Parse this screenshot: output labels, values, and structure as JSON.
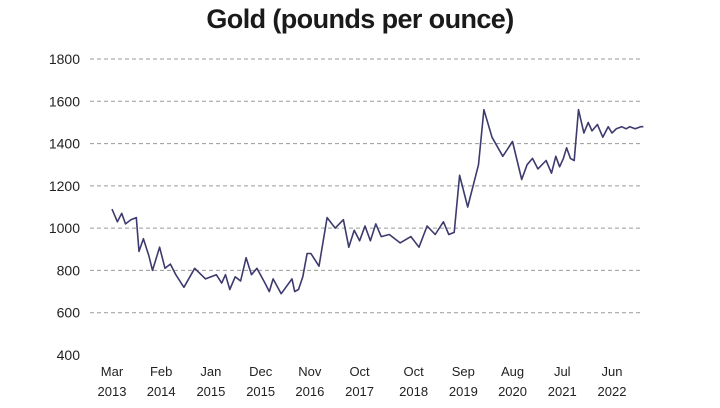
{
  "chart_data": {
    "type": "line",
    "title": "Gold (pounds per ounce)",
    "xlabel": "",
    "ylabel": "",
    "ylim": [
      400,
      1800
    ],
    "yticks": [
      400,
      600,
      800,
      1000,
      1200,
      1400,
      1600,
      1800
    ],
    "grid": "horizontal dashed",
    "x_tick_labels": [
      {
        "month": "Mar",
        "year": "2013",
        "x": 2013.17
      },
      {
        "month": "Feb",
        "year": "2014",
        "x": 2014.08
      },
      {
        "month": "Jan",
        "year": "2015",
        "x": 2015.0
      },
      {
        "month": "Dec",
        "year": "2015",
        "x": 2015.92
      },
      {
        "month": "Nov",
        "year": "2016",
        "x": 2016.83
      },
      {
        "month": "Oct",
        "year": "2017",
        "x": 2017.75
      },
      {
        "month": "Oct",
        "year": "2018",
        "x": 2018.75
      },
      {
        "month": "Sep",
        "year": "2019",
        "x": 2019.67
      },
      {
        "month": "Aug",
        "year": "2020",
        "x": 2020.58
      },
      {
        "month": "Jul",
        "year": "2021",
        "x": 2021.5
      },
      {
        "month": "Jun",
        "year": "2022",
        "x": 2022.42
      }
    ],
    "xlim": [
      2013.17,
      2023.0
    ],
    "series": [
      {
        "color": "#3d3a6e",
        "x": [
          2013.17,
          2013.27,
          2013.35,
          2013.42,
          2013.52,
          2013.62,
          2013.67,
          2013.75,
          2013.85,
          2013.92,
          2014.05,
          2014.15,
          2014.25,
          2014.35,
          2014.5,
          2014.7,
          2014.9,
          2015.1,
          2015.2,
          2015.27,
          2015.35,
          2015.45,
          2015.55,
          2015.65,
          2015.75,
          2015.85,
          2016.0,
          2016.08,
          2016.15,
          2016.3,
          2016.5,
          2016.55,
          2016.62,
          2016.7,
          2016.78,
          2016.85,
          2017.0,
          2017.15,
          2017.3,
          2017.45,
          2017.55,
          2017.65,
          2017.75,
          2017.85,
          2017.95,
          2018.05,
          2018.15,
          2018.3,
          2018.5,
          2018.7,
          2018.85,
          2019.0,
          2019.15,
          2019.3,
          2019.4,
          2019.5,
          2019.6,
          2019.75,
          2019.95,
          2020.05,
          2020.2,
          2020.4,
          2020.58,
          2020.75,
          2020.85,
          2020.95,
          2021.05,
          2021.2,
          2021.3,
          2021.38,
          2021.45,
          2021.52,
          2021.58,
          2021.65,
          2021.72,
          2021.8,
          2021.9,
          2021.98,
          2022.05,
          2022.15,
          2022.25,
          2022.35,
          2022.42,
          2022.5,
          2022.6,
          2022.68,
          2022.75,
          2022.85,
          2022.95,
          2023.0
        ],
        "y": [
          1090,
          1030,
          1070,
          1020,
          1040,
          1050,
          890,
          950,
          870,
          800,
          910,
          810,
          830,
          780,
          720,
          810,
          760,
          780,
          740,
          780,
          710,
          770,
          750,
          860,
          780,
          810,
          740,
          700,
          760,
          690,
          760,
          700,
          710,
          770,
          880,
          880,
          820,
          1050,
          1000,
          1040,
          910,
          990,
          940,
          1010,
          940,
          1020,
          960,
          970,
          930,
          960,
          910,
          1010,
          970,
          1030,
          970,
          980,
          1250,
          1100,
          1300,
          1560,
          1430,
          1340,
          1410,
          1230,
          1300,
          1330,
          1280,
          1320,
          1260,
          1340,
          1290,
          1330,
          1380,
          1330,
          1320,
          1560,
          1450,
          1500,
          1460,
          1490,
          1430,
          1480,
          1450,
          1470,
          1480,
          1470,
          1480,
          1470,
          1480,
          1480
        ]
      }
    ]
  }
}
